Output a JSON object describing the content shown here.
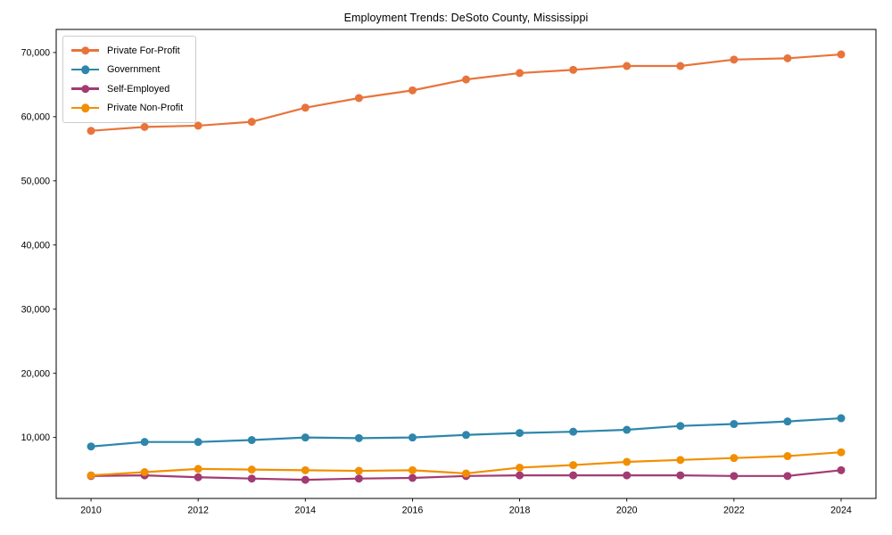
{
  "chart_data": {
    "type": "line",
    "title": "Employment Trends: DeSoto County, Mississippi",
    "xlabel": "",
    "ylabel": "",
    "x": [
      2010,
      2011,
      2012,
      2013,
      2014,
      2015,
      2016,
      2017,
      2018,
      2019,
      2020,
      2021,
      2022,
      2023,
      2024
    ],
    "series": [
      {
        "name": "Private For-Profit",
        "color": "#E8743B",
        "values": [
          57800,
          58400,
          58600,
          59200,
          61400,
          62900,
          64100,
          65800,
          66800,
          67300,
          67900,
          67900,
          68900,
          69100,
          69700
        ]
      },
      {
        "name": "Government",
        "color": "#2E86AB",
        "values": [
          8600,
          9300,
          9300,
          9600,
          10000,
          9900,
          10000,
          10400,
          10700,
          10900,
          11200,
          11800,
          12100,
          12500,
          13000
        ]
      },
      {
        "name": "Self-Employed",
        "color": "#A23B72",
        "values": [
          4000,
          4100,
          3800,
          3600,
          3400,
          3600,
          3700,
          4000,
          4100,
          4100,
          4100,
          4100,
          4000,
          4000,
          4900
        ]
      },
      {
        "name": "Private Non-Profit",
        "color": "#F18F01",
        "values": [
          4100,
          4600,
          5100,
          5000,
          4900,
          4800,
          4900,
          4400,
          5300,
          5700,
          6200,
          6500,
          6800,
          7100,
          7700
        ]
      }
    ],
    "xlim": [
      2009.35,
      2024.65
    ],
    "ylim": [
      500,
      73600
    ],
    "xticks": [
      2010,
      2012,
      2014,
      2016,
      2018,
      2020,
      2022,
      2024
    ],
    "xtick_labels": [
      "2010",
      "2012",
      "2014",
      "2016",
      "2018",
      "2020",
      "2022",
      "2024"
    ],
    "yticks": [
      10000,
      20000,
      30000,
      40000,
      50000,
      60000,
      70000
    ],
    "ytick_labels": [
      "10,000",
      "20,000",
      "30,000",
      "40,000",
      "50,000",
      "60,000",
      "70,000"
    ],
    "legend_position": "upper-left",
    "grid": false,
    "marker": "circle",
    "marker_radius": 4.5,
    "line_width": 2.2
  }
}
